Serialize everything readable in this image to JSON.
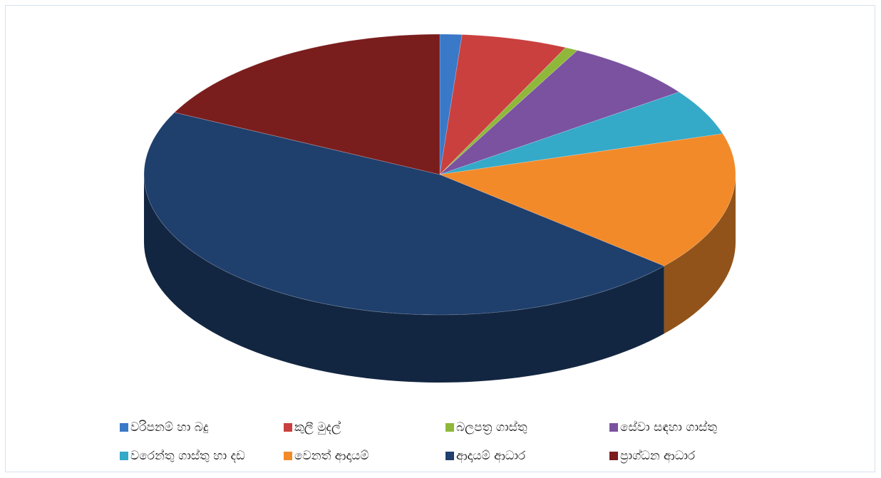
{
  "chart_data": {
    "type": "pie",
    "categories": [
      "වරිපනම් හා බදු",
      "කුලී මුදල්",
      "බලපත්‍ර ගාස්තු",
      "සේවා සඳහා ගාස්තු",
      "වරෙන්තු ගාස්තු හා දඩ",
      "වෙනත් ආදායම්",
      "ආදායම් ආධාර",
      "ප්‍රාග්ධන ආධාර"
    ],
    "values": [
      1.2,
      5.8,
      0.7,
      7.3,
      5.3,
      16,
      46,
      17.7
    ],
    "colors": [
      "#3a78c8",
      "#c9403f",
      "#8fb83a",
      "#7a52a0",
      "#34a9c8",
      "#f28a2a",
      "#1f3f6d",
      "#7a1d1d"
    ],
    "legend": "bottom"
  }
}
